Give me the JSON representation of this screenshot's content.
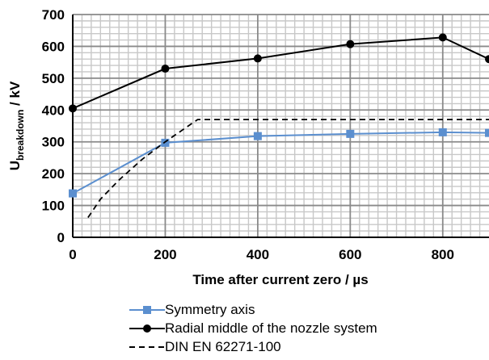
{
  "chart_data": {
    "type": "line",
    "title": "",
    "xlabel": "Time after current zero / µs",
    "ylabel_main": "U",
    "ylabel_sub": "breakdown",
    "ylabel_unit": " / kV",
    "xlim": [
      0,
      900
    ],
    "ylim": [
      0,
      700
    ],
    "x_ticks": [
      0,
      200,
      400,
      600,
      800
    ],
    "y_ticks": [
      0,
      100,
      200,
      300,
      400,
      500,
      600,
      700
    ],
    "x_minor_step": 20,
    "y_minor_step": 20,
    "grid": true,
    "legend_position": "bottom",
    "series": [
      {
        "name": "Symmetry axis",
        "color": "#5b8fcf",
        "marker": "square",
        "dash": "solid",
        "x": [
          0,
          200,
          400,
          600,
          800,
          900
        ],
        "y": [
          138,
          297,
          318,
          325,
          330,
          328
        ]
      },
      {
        "name": "Radial middle of the nozzle system",
        "color": "#000000",
        "marker": "circle",
        "dash": "solid",
        "x": [
          0,
          200,
          400,
          600,
          800,
          900
        ],
        "y": [
          405,
          530,
          562,
          607,
          628,
          560
        ]
      },
      {
        "name": "DIN EN 62271-100",
        "color": "#000000",
        "marker": "none",
        "dash": "dashed",
        "x": [
          33,
          60,
          100,
          150,
          200,
          240,
          270,
          400,
          600,
          800,
          900
        ],
        "y": [
          62,
          120,
          180,
          245,
          300,
          340,
          370,
          370,
          370,
          370,
          370
        ]
      }
    ]
  }
}
